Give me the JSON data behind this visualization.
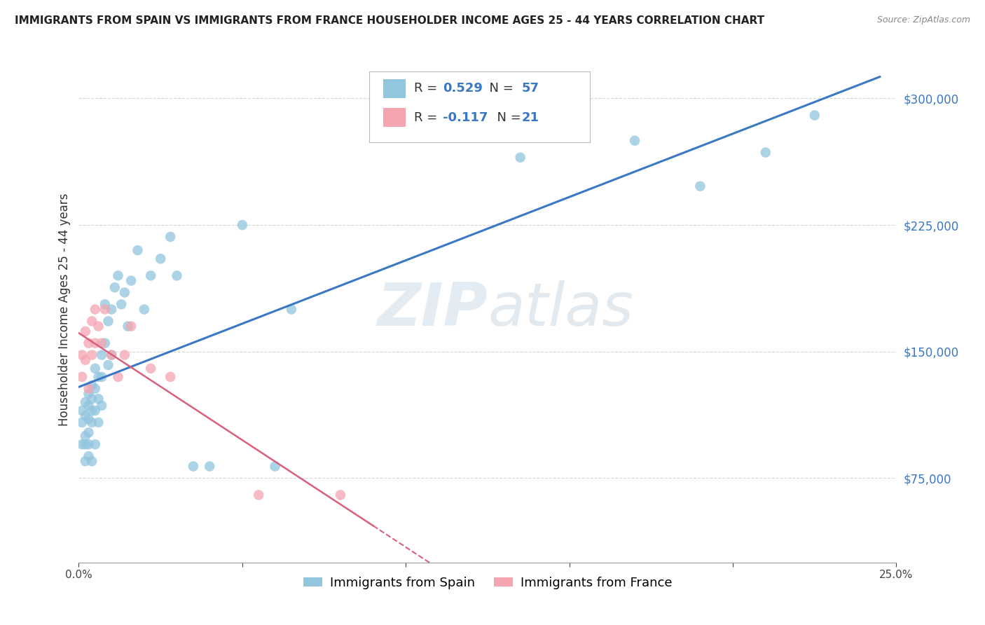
{
  "title": "IMMIGRANTS FROM SPAIN VS IMMIGRANTS FROM FRANCE HOUSEHOLDER INCOME AGES 25 - 44 YEARS CORRELATION CHART",
  "source": "Source: ZipAtlas.com",
  "ylabel": "Householder Income Ages 25 - 44 years",
  "xlim": [
    0.0,
    0.25
  ],
  "ylim": [
    25000,
    325000
  ],
  "yticks": [
    75000,
    150000,
    225000,
    300000
  ],
  "ytick_labels": [
    "$75,000",
    "$150,000",
    "$225,000",
    "$300,000"
  ],
  "xticks": [
    0.0,
    0.05,
    0.1,
    0.15,
    0.2,
    0.25
  ],
  "xtick_labels": [
    "0.0%",
    "",
    "",
    "",
    "",
    "25.0%"
  ],
  "spain_R": 0.529,
  "spain_N": 57,
  "france_R": -0.117,
  "france_N": 21,
  "spain_color": "#92c5de",
  "france_color": "#f4a5b0",
  "spain_line_color": "#3a78c4",
  "france_line_color": "#d95f7a",
  "watermark_zip": "ZIP",
  "watermark_atlas": "atlas",
  "background_color": "#ffffff",
  "spain_x": [
    0.001,
    0.001,
    0.001,
    0.002,
    0.002,
    0.002,
    0.002,
    0.002,
    0.003,
    0.003,
    0.003,
    0.003,
    0.003,
    0.003,
    0.004,
    0.004,
    0.004,
    0.004,
    0.004,
    0.005,
    0.005,
    0.005,
    0.005,
    0.006,
    0.006,
    0.006,
    0.007,
    0.007,
    0.007,
    0.008,
    0.008,
    0.009,
    0.009,
    0.01,
    0.01,
    0.011,
    0.012,
    0.013,
    0.014,
    0.015,
    0.016,
    0.018,
    0.02,
    0.022,
    0.025,
    0.028,
    0.03,
    0.035,
    0.04,
    0.05,
    0.06,
    0.065,
    0.135,
    0.17,
    0.19,
    0.21,
    0.225
  ],
  "spain_y": [
    115000,
    108000,
    95000,
    120000,
    112000,
    100000,
    95000,
    85000,
    125000,
    118000,
    110000,
    102000,
    95000,
    88000,
    130000,
    122000,
    115000,
    108000,
    85000,
    140000,
    128000,
    115000,
    95000,
    135000,
    122000,
    108000,
    148000,
    135000,
    118000,
    178000,
    155000,
    168000,
    142000,
    175000,
    148000,
    188000,
    195000,
    178000,
    185000,
    165000,
    192000,
    210000,
    175000,
    195000,
    205000,
    218000,
    195000,
    82000,
    82000,
    225000,
    82000,
    175000,
    265000,
    275000,
    248000,
    268000,
    290000
  ],
  "france_x": [
    0.001,
    0.001,
    0.002,
    0.002,
    0.003,
    0.003,
    0.004,
    0.004,
    0.005,
    0.005,
    0.006,
    0.007,
    0.008,
    0.01,
    0.012,
    0.014,
    0.016,
    0.022,
    0.028,
    0.055,
    0.08
  ],
  "france_y": [
    148000,
    135000,
    162000,
    145000,
    155000,
    128000,
    168000,
    148000,
    175000,
    155000,
    165000,
    155000,
    175000,
    148000,
    135000,
    148000,
    165000,
    140000,
    135000,
    65000,
    65000
  ]
}
